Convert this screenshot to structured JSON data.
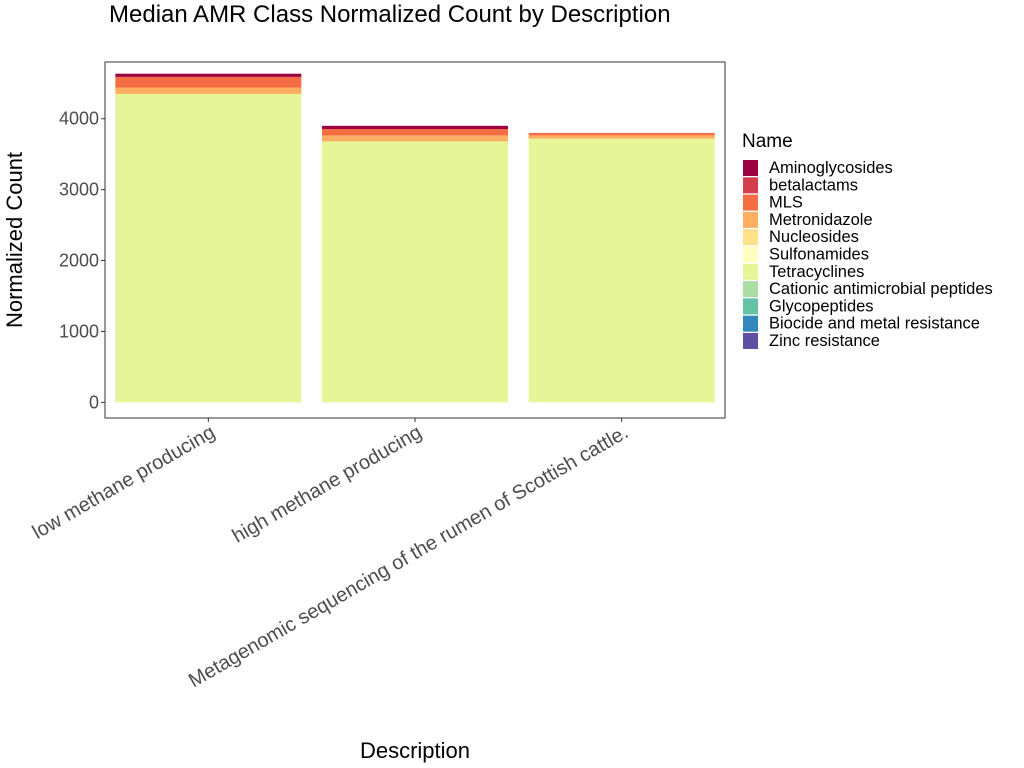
{
  "chart_data": {
    "type": "bar",
    "stacked": true,
    "title": "Median AMR Class Normalized Count by Description",
    "xlabel": "Description",
    "ylabel": "Normalized Count",
    "ylim": [
      -220,
      4800
    ],
    "yticks": [
      0,
      1000,
      2000,
      3000,
      4000
    ],
    "grid": false,
    "legend_title": "Name",
    "legend_position": "right",
    "categories": [
      "low methane producing",
      "high methane producing",
      "Metagenomic sequencing of the rumen of Scottish cattle."
    ],
    "series": [
      {
        "name": "Aminoglycosides",
        "color": "#9E0142",
        "values": [
          45,
          45,
          0
        ]
      },
      {
        "name": "betalactams",
        "color": "#D53E4F",
        "values": [
          0,
          0,
          0
        ]
      },
      {
        "name": "MLS",
        "color": "#F46D43",
        "values": [
          150,
          90,
          35
        ]
      },
      {
        "name": "Metronidazole",
        "color": "#FDAE61",
        "values": [
          90,
          85,
          45
        ]
      },
      {
        "name": "Nucleosides",
        "color": "#FEE08B",
        "values": [
          0,
          0,
          0
        ]
      },
      {
        "name": "Sulfonamides",
        "color": "#FFFFBF",
        "values": [
          0,
          0,
          0
        ]
      },
      {
        "name": "Tetracyclines",
        "color": "#E6F598",
        "values": [
          4350,
          3680,
          3720
        ]
      },
      {
        "name": "Cationic antimicrobial peptides",
        "color": "#ABDDA4",
        "values": [
          0,
          0,
          0
        ]
      },
      {
        "name": "Glycopeptides",
        "color": "#66C2A5",
        "values": [
          0,
          0,
          0
        ]
      },
      {
        "name": "Biocide and metal resistance",
        "color": "#3288BD",
        "values": [
          0,
          0,
          0
        ]
      },
      {
        "name": "Zinc resistance",
        "color": "#5E4FA2",
        "values": [
          0,
          0,
          0
        ]
      }
    ]
  }
}
